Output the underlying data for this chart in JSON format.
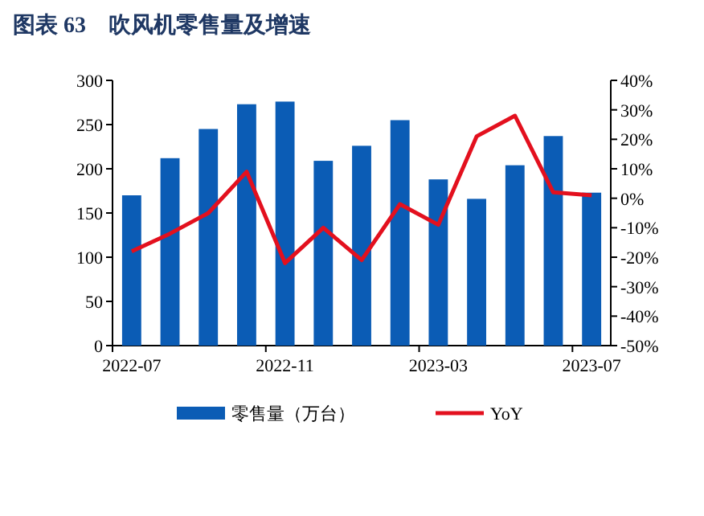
{
  "chart_data": {
    "type": "bar",
    "title": "图表 63　吹风机零售量及增速",
    "categories": [
      "2022-07",
      null,
      null,
      null,
      "2022-11",
      null,
      null,
      null,
      "2023-03",
      null,
      null,
      null,
      "2023-07"
    ],
    "series": [
      {
        "name": "零售量（万台）",
        "color": "#0b5cb5",
        "values": [
          170,
          212,
          245,
          273,
          276,
          209,
          226,
          255,
          188,
          166,
          204,
          237,
          173
        ]
      },
      {
        "name": "YoY",
        "type": "line",
        "axis": "y2",
        "color": "#e3101e",
        "values": [
          -18,
          -12,
          -5,
          9,
          -22,
          -10,
          -21,
          -2,
          -9,
          21,
          28,
          2,
          1
        ]
      }
    ],
    "ylim": [
      0,
      300
    ],
    "yticks": [
      0,
      50,
      100,
      150,
      200,
      250,
      300
    ],
    "y2lim": [
      -50,
      40
    ],
    "y2ticks": [
      {
        "value": -50,
        "label": "-50%"
      },
      {
        "value": -40,
        "label": "-40%"
      },
      {
        "value": -30,
        "label": "-30%"
      },
      {
        "value": -20,
        "label": "-20%"
      },
      {
        "value": -10,
        "label": "-10%"
      },
      {
        "value": 0,
        "label": "0%"
      },
      {
        "value": 10,
        "label": "10%"
      },
      {
        "value": 20,
        "label": "20%"
      },
      {
        "value": 30,
        "label": "30%"
      },
      {
        "value": 40,
        "label": "40%"
      }
    ],
    "legend": "bottom",
    "grid": false,
    "marker": "none"
  }
}
